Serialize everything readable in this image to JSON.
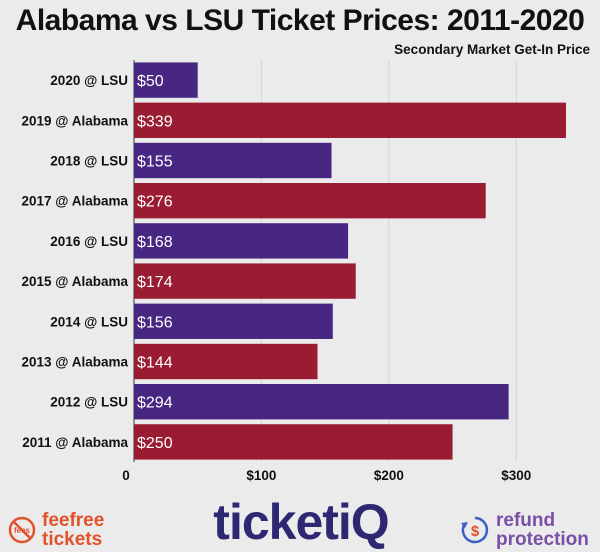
{
  "chart_data": {
    "type": "bar",
    "orientation": "horizontal",
    "title": "Alabama vs LSU Ticket Prices: 2011-2020",
    "subtitle": "Secondary Market Get-In Price",
    "categories": [
      "2020 @ LSU",
      "2019 @ Alabama",
      "2018 @ LSU",
      "2017 @ Alabama",
      "2016 @ LSU",
      "2015 @ Alabama",
      "2014 @ LSU",
      "2013 @ Alabama",
      "2012 @ LSU",
      "2011 @ Alabama"
    ],
    "values": [
      50,
      339,
      155,
      276,
      168,
      174,
      156,
      144,
      294,
      250
    ],
    "value_labels": [
      "$50",
      "$339",
      "$155",
      "$276",
      "$168",
      "$174",
      "$156",
      "$144",
      "$294",
      "$250"
    ],
    "bar_colors": [
      "#472782",
      "#9a1c33",
      "#472782",
      "#9a1c33",
      "#472782",
      "#9a1c33",
      "#472782",
      "#9a1c33",
      "#472782",
      "#9a1c33"
    ],
    "xlim": [
      0,
      350
    ],
    "x_ticks": [
      0,
      100,
      200,
      300
    ],
    "x_tick_labels": [
      "0",
      "$100",
      "$200",
      "$300"
    ],
    "grid": true
  },
  "footer": {
    "left_logo": {
      "line1": "feefree",
      "line2": "tickets",
      "icon": "no-fees-icon",
      "badge": "fees",
      "color": "#e2522b"
    },
    "center_logo": {
      "text": "ticketiQ",
      "color": "#2e2872"
    },
    "right_logo": {
      "line1": "refund",
      "line2": "protection",
      "icon": "dollar-refresh-icon",
      "color": "#7a4fa8"
    }
  }
}
